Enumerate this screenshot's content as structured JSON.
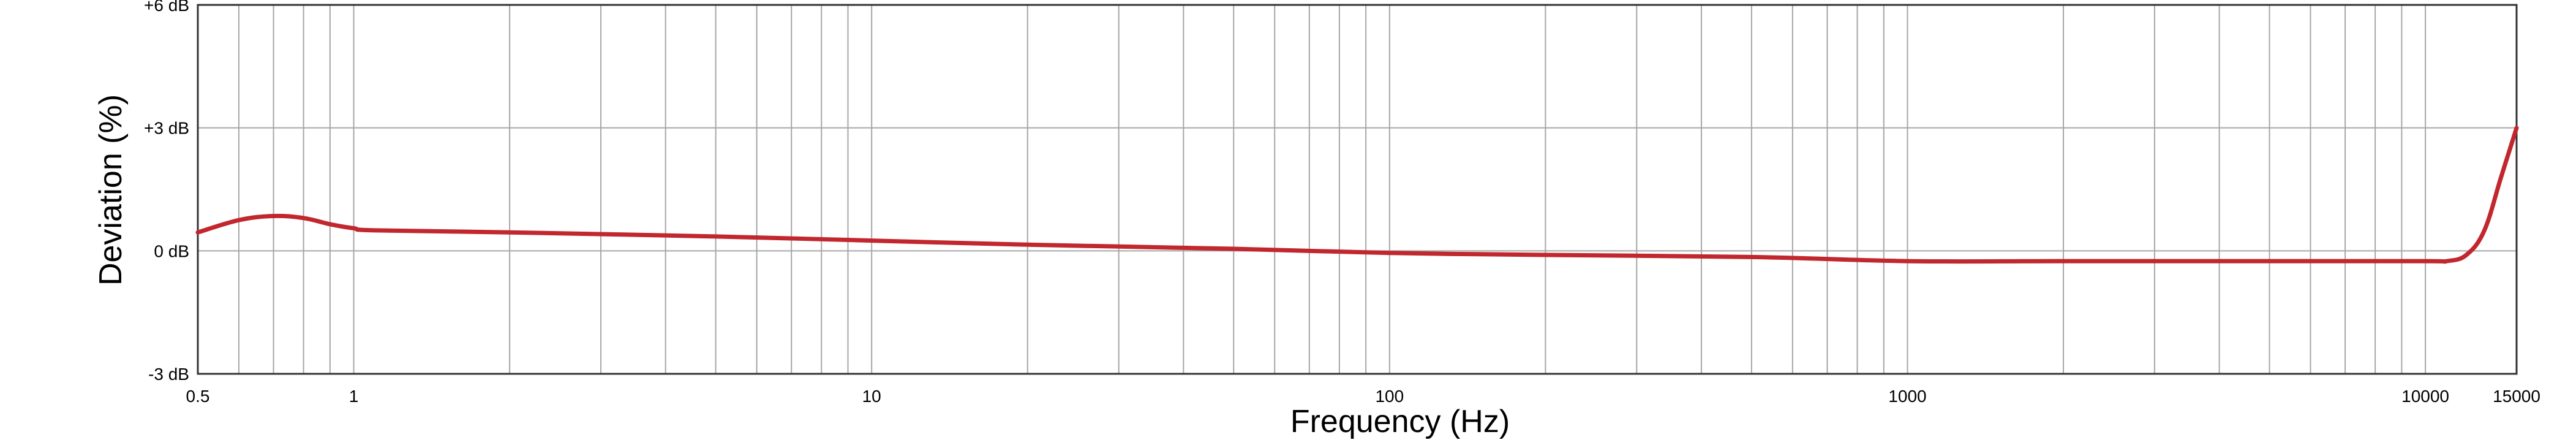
{
  "chart_data": {
    "type": "line",
    "title": "",
    "xlabel": "Frequency (Hz)",
    "ylabel": "Deviation (%)",
    "x_scale": "log",
    "xlim": [
      0.5,
      15000
    ],
    "ylim": [
      -3,
      6
    ],
    "grid": true,
    "x_ticks": [
      0.5,
      1,
      10,
      100,
      1000,
      10000,
      15000
    ],
    "x_tick_labels": [
      "0.5",
      "1",
      "10",
      "100",
      "1000",
      "10000",
      "15000"
    ],
    "y_ticks": [
      -3,
      0,
      3,
      6
    ],
    "y_tick_labels": [
      "-3 dB",
      "0 dB",
      "+3 dB",
      "+6 dB"
    ],
    "series": [
      {
        "color": "#c1272d",
        "x": [
          0.5,
          0.6,
          0.7,
          0.8,
          0.9,
          1.0,
          1.1,
          2,
          5,
          10,
          20,
          50,
          100,
          200,
          500,
          1000,
          2000,
          5000,
          10000,
          11000,
          12000,
          13000,
          14000,
          15000
        ],
        "y": [
          0.45,
          0.75,
          0.85,
          0.8,
          0.65,
          0.55,
          0.5,
          0.45,
          0.35,
          0.25,
          0.15,
          0.05,
          -0.05,
          -0.1,
          -0.15,
          -0.25,
          -0.25,
          -0.25,
          -0.25,
          -0.25,
          -0.1,
          0.5,
          1.8,
          3.0
        ]
      }
    ]
  }
}
